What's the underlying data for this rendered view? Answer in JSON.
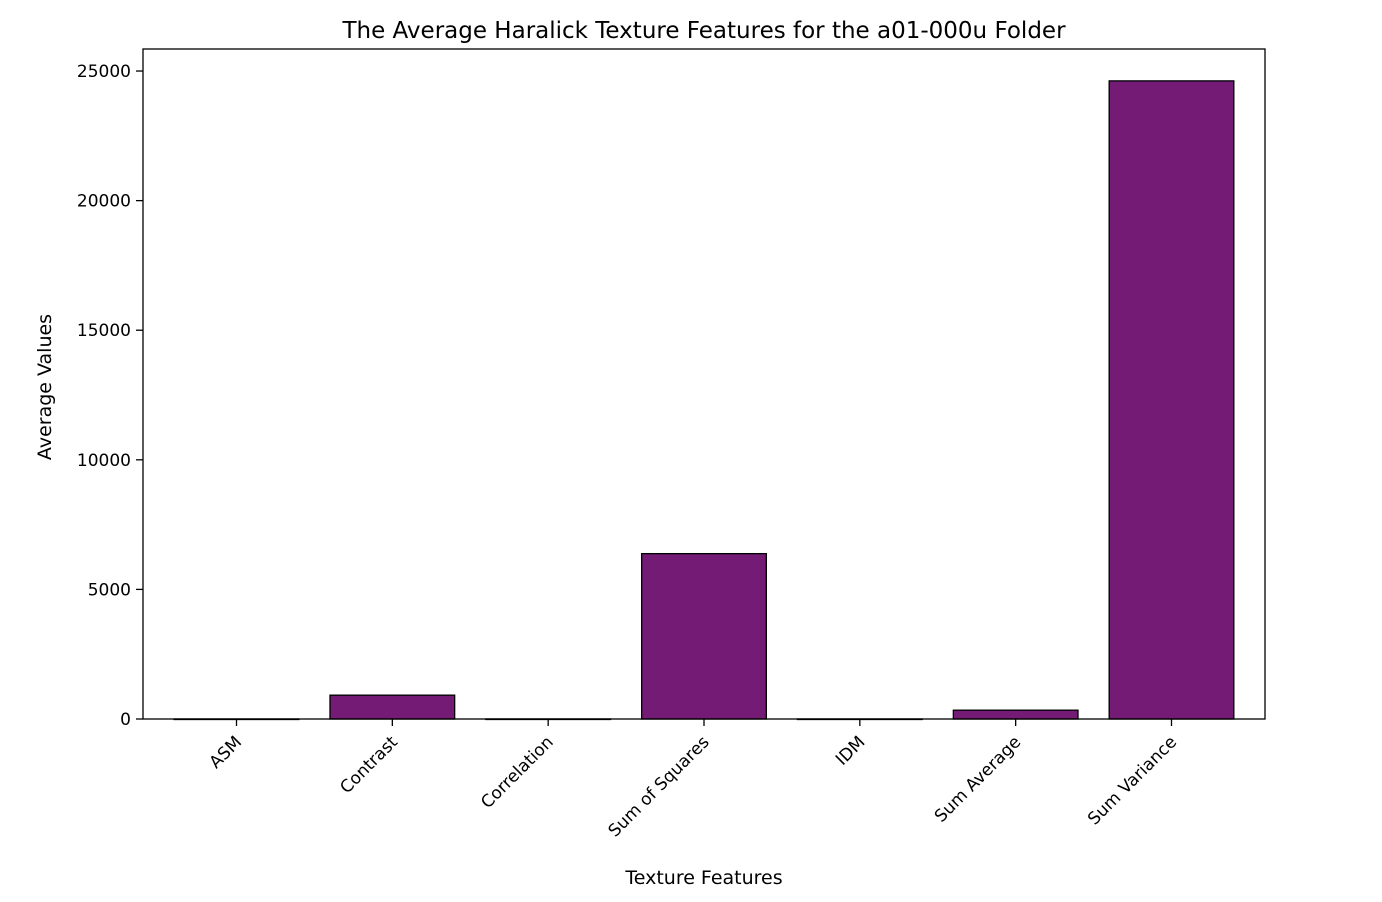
{
  "chart_data": {
    "type": "bar",
    "title": "The Average Haralick Texture Features for the a01-000u Folder",
    "xlabel": "Texture Features",
    "ylabel": "Average Values",
    "categories": [
      "ASM",
      "Contrast",
      "Correlation",
      "Sum of Squares",
      "IDM",
      "Sum Average",
      "Sum Variance"
    ],
    "values": [
      0.02,
      920,
      0.9,
      6380,
      0.4,
      340,
      24620
    ],
    "ylim": [
      0,
      25850
    ],
    "yticks": [
      0,
      5000,
      10000,
      15000,
      20000,
      25000
    ],
    "grid": false,
    "legend": "none",
    "bar_color": "#741b76",
    "edge_color": "#000000"
  }
}
